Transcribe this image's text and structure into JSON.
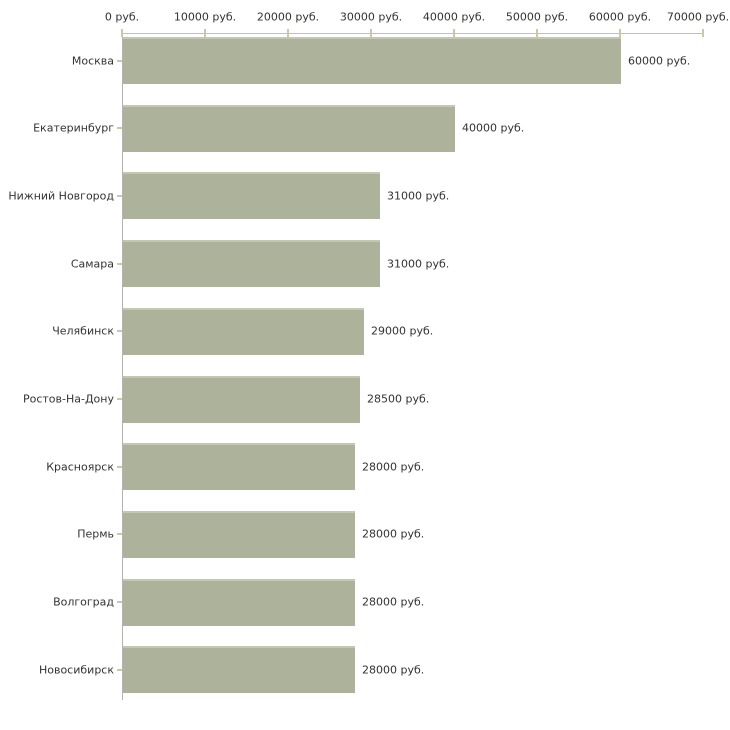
{
  "chart_data": {
    "type": "bar",
    "orientation": "horizontal",
    "categories": [
      "Москва",
      "Екатеринбург",
      "Нижний Новгород",
      "Самара",
      "Челябинск",
      "Ростов-На-Дону",
      "Красноярск",
      "Пермь",
      "Волгоград",
      "Новосибирск"
    ],
    "values": [
      60000,
      40000,
      31000,
      31000,
      29000,
      28500,
      28000,
      28000,
      28000,
      28000
    ],
    "value_labels": [
      "60000 руб.",
      "40000 руб.",
      "31000 руб.",
      "31000 руб.",
      "29000 руб.",
      "28500 руб.",
      "28000 руб.",
      "28000 руб.",
      "28000 руб.",
      "28000 руб."
    ],
    "x_axis": {
      "min": 0,
      "max": 70000,
      "tick_step": 10000,
      "position": "top",
      "tick_labels": [
        "0 руб.",
        "10000 руб.",
        "20000 руб.",
        "30000 руб.",
        "40000 руб.",
        "50000 руб.",
        "60000 руб.",
        "70000 руб."
      ]
    },
    "grid": false,
    "legend": false,
    "colors": {
      "bar_fill": "#adb39b",
      "bar_top_edge": "#c3c8b2",
      "axis_line": "#c0c0c0",
      "y_axis_line": "#b3b3b3",
      "tick_mark": "#c9c9a3",
      "text": "#333333",
      "background": "#ffffff"
    }
  }
}
